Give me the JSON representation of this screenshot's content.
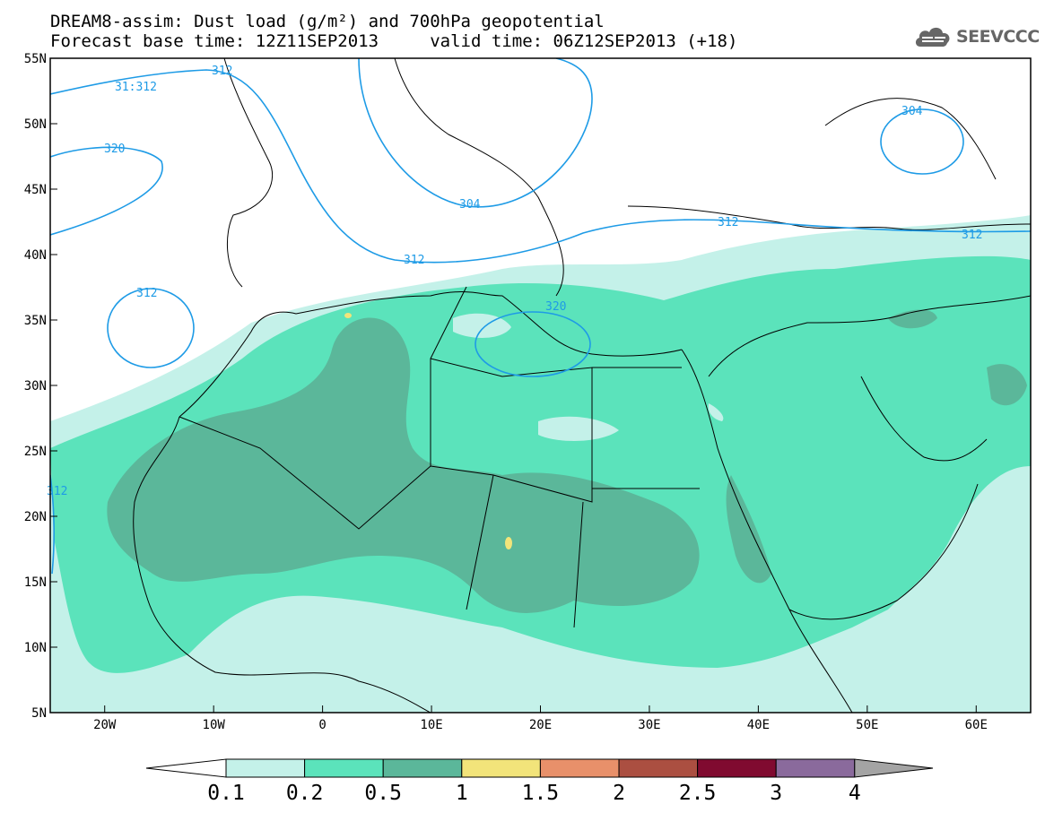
{
  "title": {
    "line1": "DREAM8-assim: Dust load (g/m²) and 700hPa geopotential",
    "line2": "Forecast base time: 12Z11SEP2013     valid time: 06Z12SEP2013 (+18)"
  },
  "logo": {
    "text": "SEEVCCC",
    "icon": "cloud-icon"
  },
  "axes": {
    "lat_labels": [
      "55N",
      "50N",
      "45N",
      "40N",
      "35N",
      "30N",
      "25N",
      "20N",
      "15N",
      "10N",
      "5N"
    ],
    "lon_labels": [
      "20W",
      "10W",
      "0",
      "10E",
      "20E",
      "30E",
      "40E",
      "50E",
      "60E"
    ],
    "lat_range": [
      5,
      55
    ],
    "lon_range": [
      -25,
      65
    ]
  },
  "contours": {
    "labels": [
      "31:312",
      "312",
      "320",
      "312",
      "304",
      "312",
      "312",
      "320",
      "304",
      "312",
      "312",
      "312"
    ]
  },
  "colorbar": {
    "ticks": [
      "0.1",
      "0.2",
      "0.5",
      "1",
      "1.5",
      "2",
      "2.5",
      "3",
      "4"
    ],
    "colors": [
      "#c4f1e9",
      "#5be3bb",
      "#5bb79a",
      "#f2e47a",
      "#e8906a",
      "#ab4f41",
      "#800a30",
      "#8a6a9c"
    ],
    "under_color": "#ffffff",
    "over_color": "#a4a4a4"
  },
  "chart_data": {
    "type": "heatmap",
    "title": "DREAM8-assim: Dust load (g/m²) and 700hPa geopotential",
    "units": "g/m²",
    "levels": [
      0.1,
      0.2,
      0.5,
      1,
      1.5,
      2,
      2.5,
      3,
      4
    ],
    "xlim": [
      -25,
      65
    ],
    "ylim": [
      5,
      55
    ],
    "x_ticks": [
      "20W",
      "10W",
      "0",
      "10E",
      "20E",
      "30E",
      "40E",
      "50E",
      "60E"
    ],
    "y_ticks": [
      "55N",
      "50N",
      "45N",
      "40N",
      "35N",
      "30N",
      "25N",
      "20N",
      "15N",
      "10N",
      "5N"
    ]
  }
}
